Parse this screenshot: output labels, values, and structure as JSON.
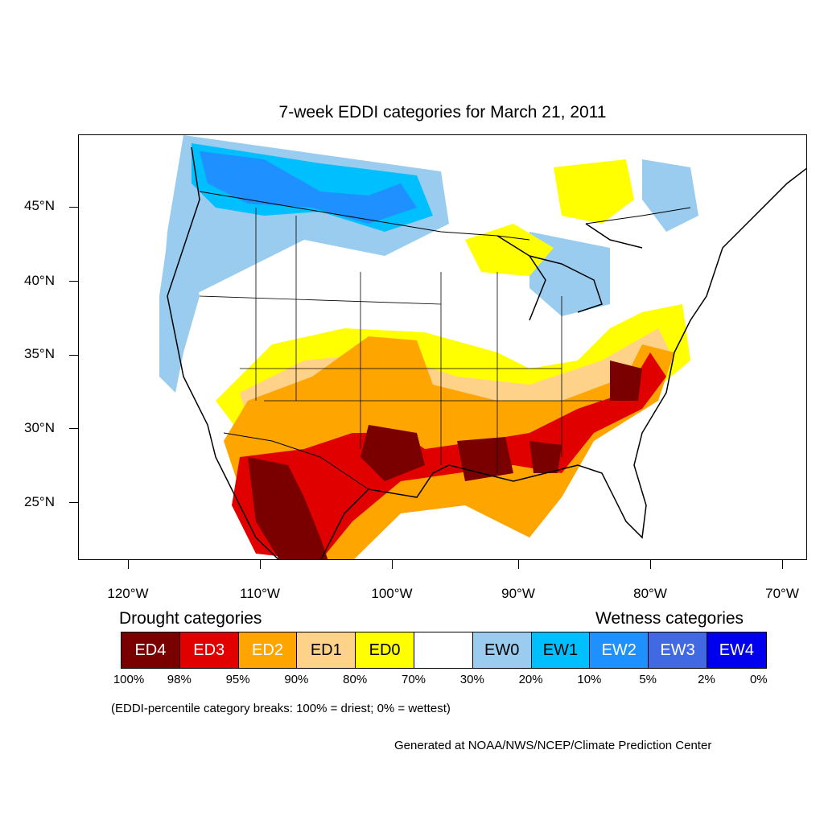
{
  "title": "7-week EDDI categories for March 21, 2011",
  "lat_labels": [
    "45°N",
    "40°N",
    "35°N",
    "30°N",
    "25°N"
  ],
  "lon_labels": [
    "120°W",
    "110°W",
    "100°W",
    "90°W",
    "80°W",
    "70°W"
  ],
  "legend": {
    "drought_heading": "Drought categories",
    "wetness_heading": "Wetness categories",
    "categories": [
      {
        "label": "ED4",
        "color": "#7a0000",
        "text_color": "#ffffff"
      },
      {
        "label": "ED3",
        "color": "#e00000",
        "text_color": "#ffffff"
      },
      {
        "label": "ED2",
        "color": "#ffa500",
        "text_color": "#ffffff"
      },
      {
        "label": "ED1",
        "color": "#ffd28a",
        "text_color": "#000000"
      },
      {
        "label": "ED0",
        "color": "#ffff00",
        "text_color": "#000000"
      },
      {
        "label": "",
        "color": "#ffffff",
        "text_color": "#000000"
      },
      {
        "label": "EW0",
        "color": "#99ccee",
        "text_color": "#000000"
      },
      {
        "label": "EW1",
        "color": "#00bfff",
        "text_color": "#000000"
      },
      {
        "label": "EW2",
        "color": "#1e90ff",
        "text_color": "#ffffff"
      },
      {
        "label": "EW3",
        "color": "#4169e1",
        "text_color": "#ffffff"
      },
      {
        "label": "EW4",
        "color": "#0000ee",
        "text_color": "#ffffff"
      }
    ],
    "percent_breaks": [
      "100%",
      "98%",
      "95%",
      "90%",
      "80%",
      "70%",
      "30%",
      "20%",
      "10%",
      "5%",
      "2%",
      "0%"
    ]
  },
  "note": "(EDDI-percentile category breaks: 100% = driest; 0% = wettest)",
  "credit": "Generated at NOAA/NWS/NCEP/Climate Prediction Center"
}
